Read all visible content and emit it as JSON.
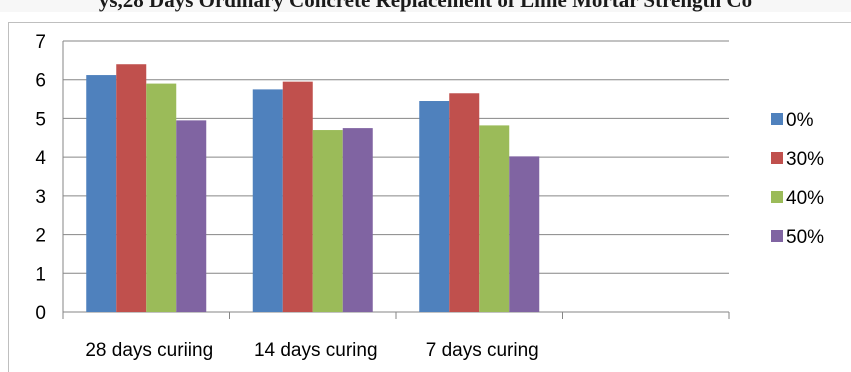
{
  "chart_data": {
    "type": "bar",
    "title": "ys,28 Days Ordinary Concrete Replacement of Lime Mortar Strength Co",
    "categories": [
      "28 days curiing",
      "14 days curing",
      "7 days curing",
      ""
    ],
    "series": [
      {
        "name": "0%",
        "color": "#4f81bd",
        "values": [
          6.12,
          5.75,
          5.45,
          null
        ]
      },
      {
        "name": "30%",
        "color": "#c0504d",
        "values": [
          6.4,
          5.95,
          5.65,
          null
        ]
      },
      {
        "name": "40%",
        "color": "#9bbb59",
        "values": [
          5.9,
          4.7,
          4.82,
          null
        ]
      },
      {
        "name": "50%",
        "color": "#8064a2",
        "values": [
          4.95,
          4.75,
          4.02,
          null
        ]
      }
    ],
    "ylim": [
      0,
      7
    ],
    "yticks": [
      0,
      1,
      2,
      3,
      4,
      5,
      6,
      7
    ],
    "grid": true,
    "legend": "right"
  }
}
